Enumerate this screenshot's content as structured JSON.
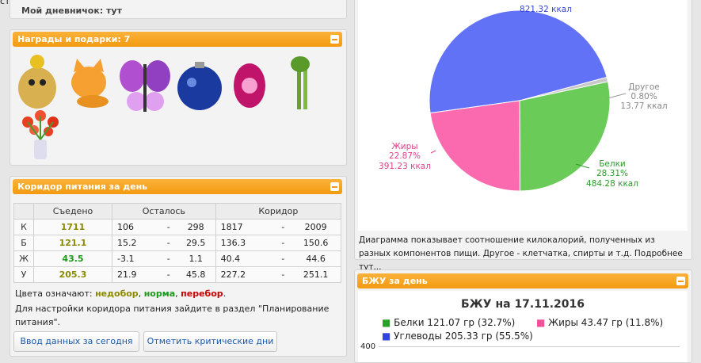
{
  "top_link": "страница",
  "diary": {
    "text": "Мой дневничок: тут"
  },
  "awards": {
    "title": "Награды и подарки: 7"
  },
  "corridor": {
    "title": "Коридор питания за день",
    "table": {
      "header": [
        "Съедено",
        "Осталось",
        "Коридор"
      ],
      "rows": [
        [
          "К",
          "1711",
          "106",
          "-",
          "298",
          "1817",
          "-",
          "2009"
        ],
        [
          "Б",
          "121.1",
          "15.2",
          "-",
          "29.5",
          "136.3",
          "-",
          "150.6"
        ],
        [
          "Ж",
          "43.5",
          "-3.1",
          "-",
          "1.1",
          "40.4",
          "-",
          "44.6"
        ],
        [
          "У",
          "205.3",
          "21.9",
          "-",
          "45.8",
          "227.2",
          "-",
          "251.1"
        ]
      ],
      "eaten_colors": [
        "#8a8a00",
        "#8a8a00",
        "#1a9a1a",
        "#8a8a00"
      ]
    },
    "legend": {
      "prefix": "Цвета означают: ",
      "items": [
        {
          "text": "недобор",
          "color": "#8a8a00"
        },
        {
          "text": "норма",
          "color": "#1a9a1a"
        },
        {
          "text": "перебор",
          "color": "#cc0000"
        }
      ],
      "suffix": "."
    },
    "note": "Для настройки коридора питания зайдите в раздел \"Планирование питания\".",
    "buttons": [
      "Ввод данных за сегодня",
      "Отметить критические дни"
    ]
  },
  "chart_data": {
    "type": "pie",
    "categories": [
      null,
      "Другое",
      "Белки",
      "Жиры"
    ],
    "values": [
      821.32,
      13.77,
      484.28,
      391.23
    ],
    "value_labels": [
      "821.32 ккал",
      "13.77 ккал",
      "484.28 ккал",
      "391.23 ккал"
    ],
    "percent_labels": [
      null,
      "0.80%",
      "28.31%",
      "22.87%"
    ],
    "colors": [
      "#6272f7",
      "#c8c8c8",
      "#6acb58",
      "#fb6aae"
    ]
  },
  "chart_caption": "Диаграмма показывает соотношение килокалорий, полученных из разных компонентов пищи. Другое - клетчатка, спирты и т.д. Подробнее тут...",
  "bju": {
    "title": "БЖУ за день",
    "chart_title": "БЖУ на 17.11.2016",
    "legend": [
      {
        "text": "Белки 121.07 гр (32.7%)",
        "color": "#2aa02a"
      },
      {
        "text": "Жиры 43.47 гр (11.8%)",
        "color": "#f0509a"
      },
      {
        "text": "Углеводы 205.33 гр (55.5%)",
        "color": "#3344dd"
      }
    ],
    "ytick": "400"
  }
}
